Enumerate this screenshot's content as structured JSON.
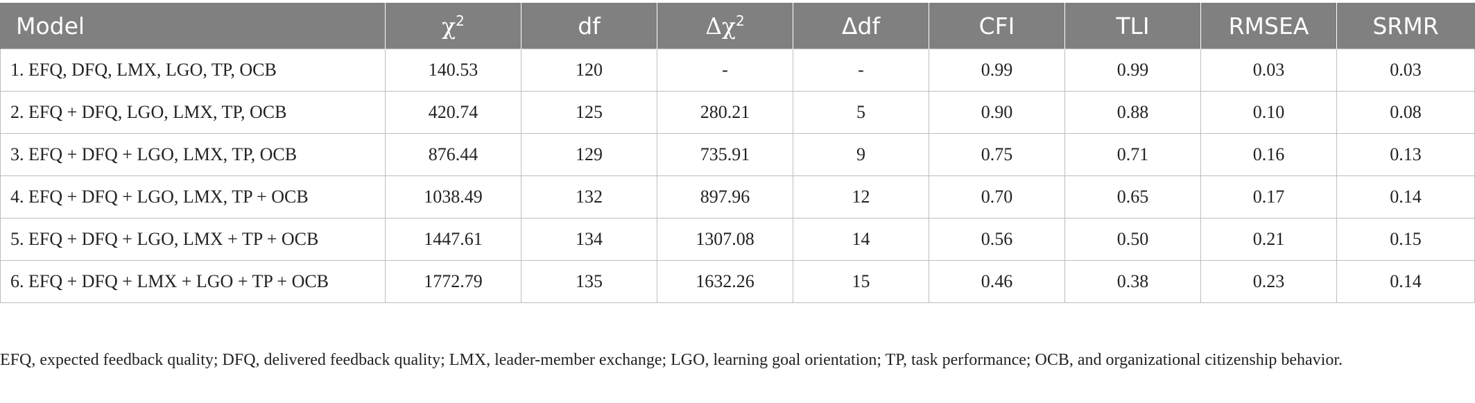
{
  "headers": {
    "model": "Model",
    "chi2_base": "χ",
    "chi2_sup": "2",
    "df": "df",
    "dchi2_base": "Δχ",
    "dchi2_sup": "2",
    "ddf": "Δdf",
    "cfi": "CFI",
    "tli": "TLI",
    "rmsea": "RMSEA",
    "srmr": "SRMR"
  },
  "rows": [
    {
      "model": "1. EFQ, DFQ, LMX, LGO, TP, OCB",
      "chi2": "140.53",
      "df": "120",
      "dchi2": "-",
      "ddf": "-",
      "cfi": "0.99",
      "tli": "0.99",
      "rmsea": "0.03",
      "srmr": "0.03"
    },
    {
      "model": "2. EFQ + DFQ, LGO, LMX, TP, OCB",
      "chi2": "420.74",
      "df": "125",
      "dchi2": "280.21",
      "ddf": "5",
      "cfi": "0.90",
      "tli": "0.88",
      "rmsea": "0.10",
      "srmr": "0.08"
    },
    {
      "model": "3. EFQ + DFQ + LGO, LMX, TP, OCB",
      "chi2": "876.44",
      "df": "129",
      "dchi2": "735.91",
      "ddf": "9",
      "cfi": "0.75",
      "tli": "0.71",
      "rmsea": "0.16",
      "srmr": "0.13"
    },
    {
      "model": "4. EFQ + DFQ + LGO, LMX, TP + OCB",
      "chi2": "1038.49",
      "df": "132",
      "dchi2": "897.96",
      "ddf": "12",
      "cfi": "0.70",
      "tli": "0.65",
      "rmsea": "0.17",
      "srmr": "0.14"
    },
    {
      "model": "5. EFQ + DFQ + LGO, LMX + TP + OCB",
      "chi2": "1447.61",
      "df": "134",
      "dchi2": "1307.08",
      "ddf": "14",
      "cfi": "0.56",
      "tli": "0.50",
      "rmsea": "0.21",
      "srmr": "0.15"
    },
    {
      "model": "6. EFQ + DFQ + LMX + LGO + TP + OCB",
      "chi2": "1772.79",
      "df": "135",
      "dchi2": "1632.26",
      "ddf": "15",
      "cfi": "0.46",
      "tli": "0.38",
      "rmsea": "0.23",
      "srmr": "0.14"
    }
  ],
  "footnote": "EFQ, expected feedback quality; DFQ, delivered feedback quality; LMX, leader-member exchange; LGO, learning goal orientation; TP, task performance; OCB, and organizational citizenship behavior."
}
